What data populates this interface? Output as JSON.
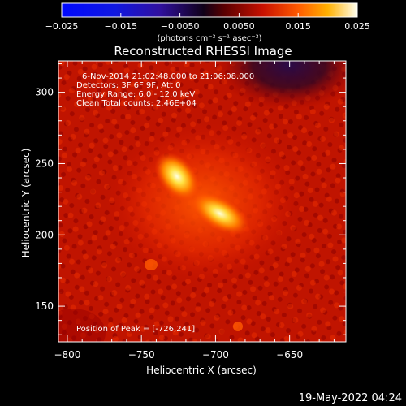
{
  "chart_data": {
    "type": "heatmap",
    "title": "Reconstructed RHESSI Image",
    "xlabel": "Heliocentric X (arcsec)",
    "ylabel": "Heliocentric Y (arcsec)",
    "xlim": [
      -806,
      -612
    ],
    "ylim": [
      125,
      322
    ],
    "x_ticks": [
      -800,
      -750,
      -700,
      -650
    ],
    "x_tick_labels": [
      "−800",
      "−750",
      "−700",
      "−650"
    ],
    "y_ticks": [
      150,
      200,
      250,
      300
    ],
    "y_tick_labels": [
      "150",
      "200",
      "250",
      "300"
    ],
    "colorbar": {
      "min": -0.025,
      "max": 0.025,
      "ticks": [
        -0.025,
        -0.015,
        -0.005,
        0.005,
        0.015,
        0.025
      ],
      "tick_labels": [
        "−0.025",
        "−0.015",
        "−0.0050",
        "0.0050",
        "0.015",
        "0.025"
      ],
      "units_label": "(photons cm⁻² s⁻¹ asec⁻²)"
    },
    "annotations": [
      "6-Nov-2014 21:02:48.000 to 21:06:08.000",
      "Detectors: 3F 6F 9F, Att 0",
      "Energy Range: 6.0 - 12.0 keV",
      "Clean     Total counts: 2.46E+04"
    ],
    "peak_label": "Position of Peak = [-726,241]",
    "sources": [
      {
        "x": -726,
        "y": 241,
        "peak": 0.025
      },
      {
        "x": -697,
        "y": 215,
        "peak": 0.024
      }
    ]
  },
  "footer": {
    "date": "19-May-2022 04:24"
  },
  "colors": {
    "background": "#000000",
    "axis": "#ffffff"
  }
}
